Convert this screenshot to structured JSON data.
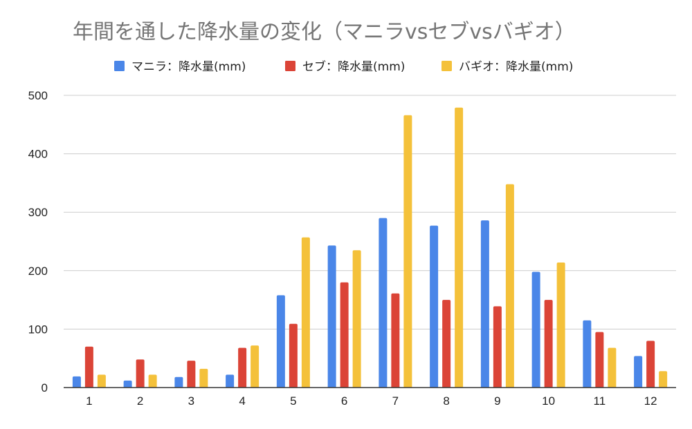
{
  "chart_data": {
    "type": "bar",
    "title": "年間を通した降水量の変化（マニラvsセブvsバギオ）",
    "xlabel": "",
    "ylabel": "",
    "categories": [
      "1",
      "2",
      "3",
      "4",
      "5",
      "6",
      "7",
      "8",
      "9",
      "10",
      "11",
      "12"
    ],
    "yticks": [
      "0",
      "100",
      "200",
      "300",
      "400",
      "500"
    ],
    "ylim": [
      0,
      500
    ],
    "grid": true,
    "legend_position": "top",
    "series": [
      {
        "name": "マニラ：降水量(mm)",
        "color": "#4a86e8",
        "values": [
          19,
          12,
          18,
          22,
          158,
          243,
          290,
          277,
          286,
          198,
          115,
          54
        ]
      },
      {
        "name": "セブ：降水量(mm)",
        "color": "#db4437",
        "values": [
          70,
          48,
          46,
          68,
          109,
          180,
          161,
          150,
          139,
          150,
          95,
          80
        ]
      },
      {
        "name": "バギオ：降水量(mm)",
        "color": "#f4c13a",
        "values": [
          22,
          22,
          32,
          72,
          257,
          235,
          466,
          479,
          348,
          214,
          68,
          28
        ]
      }
    ]
  }
}
